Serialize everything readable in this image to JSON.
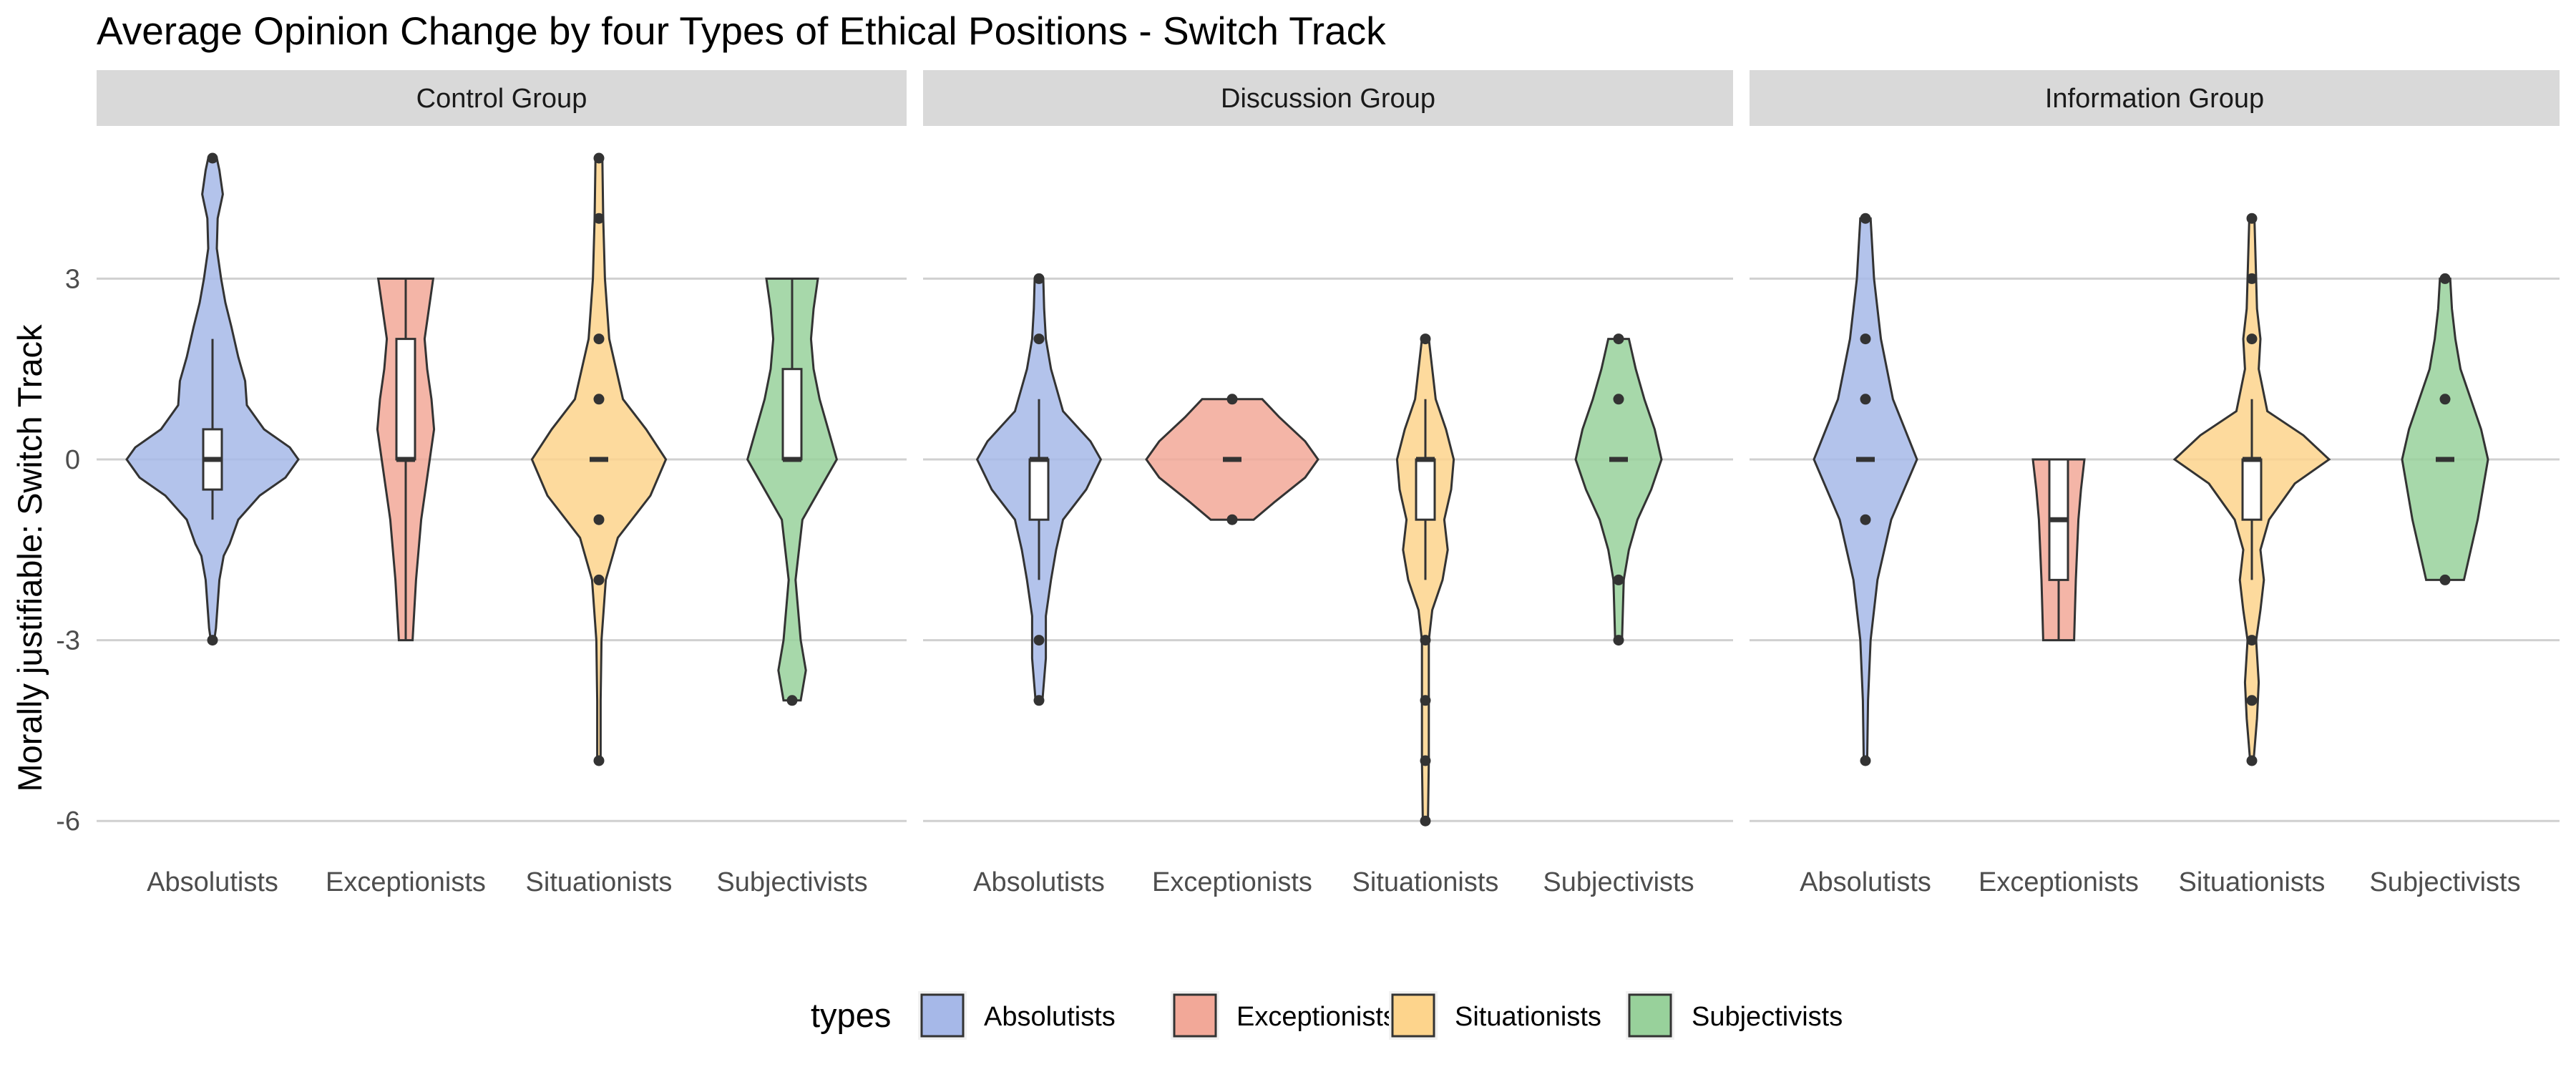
{
  "chart_data": {
    "type": "violin",
    "title": "Average Opinion Change by four Types of Ethical Positions - Switch Track",
    "ylabel": "Morally justifiable: Switch Track",
    "xlabel": "",
    "ylim": [
      -6.5,
      5.2
    ],
    "y_ticks": [
      3,
      0,
      -3,
      -6
    ],
    "categories": [
      "Absolutists",
      "Exceptionists",
      "Situationists",
      "Subjectivists"
    ],
    "colors": {
      "Absolutists": "#a6b8e8",
      "Exceptionists": "#f2a898",
      "Situationists": "#fdd48c",
      "Subjectivists": "#98d19b"
    },
    "legend": {
      "title": "types",
      "position": "bottom",
      "items": [
        "Absolutists",
        "Exceptionists",
        "Situationists",
        "Subjectivists"
      ]
    },
    "grid": true,
    "facets": [
      {
        "label": "Control Group",
        "groups": [
          {
            "type": "Absolutists",
            "violin": [
              [
                -3,
                0.02
              ],
              [
                -2.8,
                0.04
              ],
              [
                -2,
                0.08
              ],
              [
                -1.6,
                0.13
              ],
              [
                -1.4,
                0.2
              ],
              [
                -1,
                0.3
              ],
              [
                -0.6,
                0.55
              ],
              [
                -0.3,
                0.85
              ],
              [
                0,
                1
              ],
              [
                0.2,
                0.9
              ],
              [
                0.5,
                0.6
              ],
              [
                0.9,
                0.4
              ],
              [
                1.3,
                0.38
              ],
              [
                1.7,
                0.3
              ],
              [
                2.2,
                0.22
              ],
              [
                2.6,
                0.15
              ],
              [
                3,
                0.1
              ],
              [
                3.5,
                0.05
              ],
              [
                4,
                0.06
              ],
              [
                4.4,
                0.12
              ],
              [
                4.8,
                0.08
              ],
              [
                5,
                0.05
              ]
            ],
            "box": {
              "lower": -0.5,
              "q1": -0.5,
              "median": 0,
              "q3": 0.5,
              "upper": 2,
              "whisker_low": -1
            },
            "outliers": [
              -3,
              5
            ]
          },
          {
            "type": "Exceptionists",
            "violin": [
              [
                -3,
                0.08
              ],
              [
                -2,
                0.12
              ],
              [
                -1,
                0.18
              ],
              [
                0,
                0.28
              ],
              [
                0.5,
                0.33
              ],
              [
                1,
                0.3
              ],
              [
                1.5,
                0.25
              ],
              [
                2,
                0.22
              ],
              [
                2.5,
                0.27
              ],
              [
                3,
                0.32
              ]
            ],
            "box": {
              "q1": 0,
              "median": 0,
              "q3": 2,
              "whisker_low": -3,
              "upper": 3
            },
            "outliers": []
          },
          {
            "type": "Situationists",
            "violin": [
              [
                -5,
                0.02
              ],
              [
                -4,
                0.02
              ],
              [
                -3,
                0.03
              ],
              [
                -2,
                0.08
              ],
              [
                -1.3,
                0.22
              ],
              [
                -0.6,
                0.6
              ],
              [
                0,
                0.78
              ],
              [
                0.5,
                0.55
              ],
              [
                1,
                0.28
              ],
              [
                2,
                0.12
              ],
              [
                3,
                0.07
              ],
              [
                4,
                0.05
              ],
              [
                5,
                0.04
              ]
            ],
            "box": {
              "q1": 0,
              "median": 0,
              "q3": 0,
              "whisker_low": 0,
              "upper": 0
            },
            "outliers": [
              -5,
              -2,
              -1,
              1,
              2,
              4,
              5
            ]
          },
          {
            "type": "Subjectivists",
            "violin": [
              [
                -4,
                0.1
              ],
              [
                -3.5,
                0.16
              ],
              [
                -3,
                0.1
              ],
              [
                -2,
                0.04
              ],
              [
                -1,
                0.12
              ],
              [
                0,
                0.52
              ],
              [
                0.5,
                0.42
              ],
              [
                1,
                0.32
              ],
              [
                1.5,
                0.25
              ],
              [
                2,
                0.22
              ],
              [
                2.5,
                0.25
              ],
              [
                3,
                0.3
              ]
            ],
            "box": {
              "q1": 0,
              "median": 0,
              "q3": 1.5,
              "whisker_low": 0,
              "upper": 3
            },
            "outliers": [
              -4
            ]
          }
        ]
      },
      {
        "label": "Discussion Group",
        "groups": [
          {
            "type": "Absolutists",
            "violin": [
              [
                -4,
                0.04
              ],
              [
                -3.3,
                0.08
              ],
              [
                -2.6,
                0.08
              ],
              [
                -2,
                0.14
              ],
              [
                -1.5,
                0.2
              ],
              [
                -1,
                0.28
              ],
              [
                -0.5,
                0.55
              ],
              [
                0,
                0.72
              ],
              [
                0.3,
                0.6
              ],
              [
                0.8,
                0.28
              ],
              [
                1.5,
                0.14
              ],
              [
                2,
                0.08
              ],
              [
                2.5,
                0.06
              ],
              [
                3,
                0.05
              ]
            ],
            "box": {
              "q1": -1,
              "median": 0,
              "q3": 0,
              "whisker_low": -2,
              "upper": 1
            },
            "outliers": [
              -4,
              -3,
              2,
              3
            ]
          },
          {
            "type": "Exceptionists",
            "violin": [
              [
                -1,
                0.25
              ],
              [
                -0.7,
                0.5
              ],
              [
                -0.3,
                0.85
              ],
              [
                0,
                1
              ],
              [
                0.3,
                0.85
              ],
              [
                0.7,
                0.55
              ],
              [
                1,
                0.35
              ]
            ],
            "box": {
              "q1": 0,
              "median": 0,
              "q3": 0,
              "whisker_low": 0,
              "upper": 0
            },
            "outliers": [
              -1,
              1
            ]
          },
          {
            "type": "Situationists",
            "violin": [
              [
                -6,
                0.03
              ],
              [
                -5,
                0.04
              ],
              [
                -4,
                0.04
              ],
              [
                -3,
                0.04
              ],
              [
                -2.5,
                0.08
              ],
              [
                -2,
                0.2
              ],
              [
                -1.5,
                0.26
              ],
              [
                -1,
                0.22
              ],
              [
                -0.5,
                0.3
              ],
              [
                0,
                0.33
              ],
              [
                0.5,
                0.24
              ],
              [
                1,
                0.12
              ],
              [
                1.5,
                0.08
              ],
              [
                2,
                0.04
              ]
            ],
            "box": {
              "q1": -1,
              "median": 0,
              "q3": 0,
              "whisker_low": -2,
              "upper": 1
            },
            "outliers": [
              -6,
              -5,
              -4,
              -3,
              2
            ]
          },
          {
            "type": "Subjectivists",
            "violin": [
              [
                -3,
                0.04
              ],
              [
                -2,
                0.06
              ],
              [
                -1.5,
                0.12
              ],
              [
                -1,
                0.22
              ],
              [
                -0.5,
                0.38
              ],
              [
                0,
                0.5
              ],
              [
                0.5,
                0.42
              ],
              [
                1,
                0.3
              ],
              [
                1.5,
                0.2
              ],
              [
                2,
                0.12
              ]
            ],
            "box": {
              "q1": 0,
              "median": 0,
              "q3": 0,
              "whisker_low": 0,
              "upper": 0
            },
            "outliers": [
              -3,
              -2,
              1,
              2
            ]
          }
        ]
      },
      {
        "label": "Information Group",
        "groups": [
          {
            "type": "Absolutists",
            "violin": [
              [
                -5,
                0.02
              ],
              [
                -4,
                0.03
              ],
              [
                -3,
                0.06
              ],
              [
                -2,
                0.14
              ],
              [
                -1,
                0.3
              ],
              [
                0,
                0.6
              ],
              [
                1,
                0.32
              ],
              [
                2,
                0.18
              ],
              [
                3,
                0.1
              ],
              [
                4,
                0.06
              ]
            ],
            "box": {
              "q1": 0,
              "median": 0,
              "q3": 0,
              "whisker_low": 0,
              "upper": 0
            },
            "outliers": [
              -5,
              -1,
              1,
              2,
              4
            ]
          },
          {
            "type": "Exceptionists",
            "violin": [
              [
                -3,
                0.18
              ],
              [
                -2,
                0.2
              ],
              [
                -1,
                0.23
              ],
              [
                -0.5,
                0.26
              ],
              [
                0,
                0.3
              ]
            ],
            "box": {
              "q1": -2,
              "median": -1,
              "q3": 0,
              "whisker_low": -3,
              "upper": 0
            },
            "outliers": []
          },
          {
            "type": "Situationists",
            "violin": [
              [
                -5,
                0.02
              ],
              [
                -4.3,
                0.06
              ],
              [
                -3.7,
                0.08
              ],
              [
                -3,
                0.05
              ],
              [
                -2.5,
                0.1
              ],
              [
                -2,
                0.14
              ],
              [
                -1.5,
                0.1
              ],
              [
                -1,
                0.2
              ],
              [
                -0.4,
                0.5
              ],
              [
                0,
                0.9
              ],
              [
                0.4,
                0.6
              ],
              [
                0.8,
                0.18
              ],
              [
                1.5,
                0.08
              ],
              [
                2,
                0.1
              ],
              [
                2.5,
                0.06
              ],
              [
                3,
                0.05
              ],
              [
                4,
                0.03
              ]
            ],
            "box": {
              "q1": -1,
              "median": 0,
              "q3": 0,
              "whisker_low": -2,
              "upper": 1
            },
            "outliers": [
              -5,
              -4,
              -3,
              2,
              3,
              4
            ]
          },
          {
            "type": "Subjectivists",
            "violin": [
              [
                -2,
                0.22
              ],
              [
                -1.5,
                0.3
              ],
              [
                -1,
                0.38
              ],
              [
                -0.5,
                0.44
              ],
              [
                0,
                0.5
              ],
              [
                0.5,
                0.42
              ],
              [
                1,
                0.3
              ],
              [
                1.5,
                0.18
              ],
              [
                2,
                0.12
              ],
              [
                2.5,
                0.08
              ],
              [
                3,
                0.06
              ]
            ],
            "box": {
              "q1": 0,
              "median": 0,
              "q3": 0,
              "whisker_low": 0,
              "upper": 0
            },
            "outliers": [
              -2,
              1,
              3
            ]
          }
        ]
      }
    ]
  }
}
